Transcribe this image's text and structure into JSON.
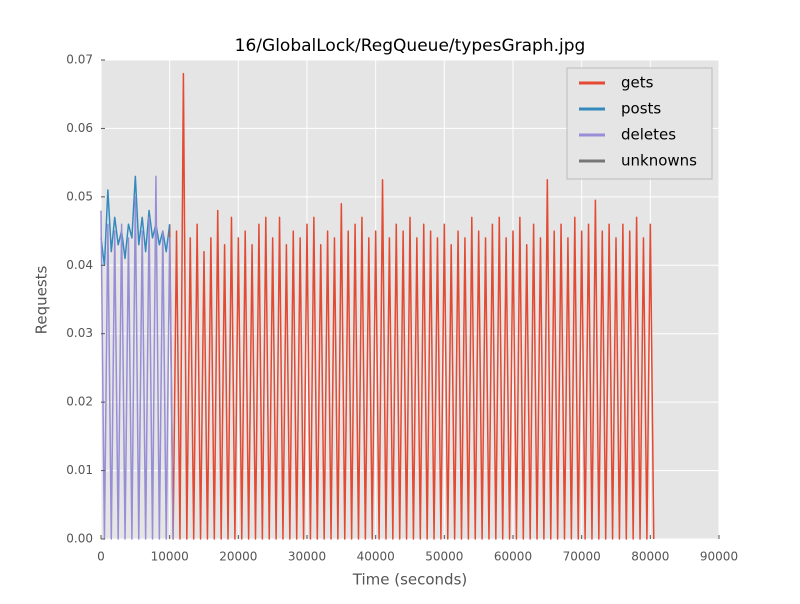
{
  "chart_data": {
    "type": "line",
    "title": "16/GlobalLock/RegQueue/typesGraph.jpg",
    "xlabel": "Time (seconds)",
    "ylabel": "Requests",
    "xlim": [
      0,
      90000
    ],
    "ylim": [
      0,
      0.07
    ],
    "xticks": [
      0,
      10000,
      20000,
      30000,
      40000,
      50000,
      60000,
      70000,
      80000,
      90000
    ],
    "yticks": [
      {
        "value": 0,
        "label": "0.00"
      },
      {
        "value": 0.01,
        "label": "0.01"
      },
      {
        "value": 0.02,
        "label": "0.02"
      },
      {
        "value": 0.03,
        "label": "0.03"
      },
      {
        "value": 0.04,
        "label": "0.04"
      },
      {
        "value": 0.05,
        "label": "0.05"
      },
      {
        "value": 0.06,
        "label": "0.06"
      },
      {
        "value": 0.07,
        "label": "0.07"
      }
    ],
    "grid": true,
    "legend": "upper right",
    "series": [
      {
        "name": "gets",
        "color": "#e24a33",
        "x": [
          10000,
          10500,
          11000,
          11500,
          12000,
          12500,
          13000,
          13500,
          14000,
          14500,
          15000,
          15500,
          16000,
          16500,
          17000,
          17500,
          18000,
          18500,
          19000,
          19500,
          20000,
          20500,
          21000,
          21500,
          22000,
          22500,
          23000,
          23500,
          24000,
          24500,
          25000,
          25500,
          26000,
          26500,
          27000,
          27500,
          28000,
          28500,
          29000,
          29500,
          30000,
          30500,
          31000,
          31500,
          32000,
          32500,
          33000,
          33500,
          34000,
          34500,
          35000,
          35500,
          36000,
          36500,
          37000,
          37500,
          38000,
          38500,
          39000,
          39500,
          40000,
          40500,
          41000,
          41500,
          42000,
          42500,
          43000,
          43500,
          44000,
          44500,
          45000,
          45500,
          46000,
          46500,
          47000,
          47500,
          48000,
          48500,
          49000,
          49500,
          50000,
          50500,
          51000,
          51500,
          52000,
          52500,
          53000,
          53500,
          54000,
          54500,
          55000,
          55500,
          56000,
          56500,
          57000,
          57500,
          58000,
          58500,
          59000,
          59500,
          60000,
          60500,
          61000,
          61500,
          62000,
          62500,
          63000,
          63500,
          64000,
          64500,
          65000,
          65500,
          66000,
          66500,
          67000,
          67500,
          68000,
          68500,
          69000,
          69500,
          70000,
          70500,
          71000,
          71500,
          72000,
          72500,
          73000,
          73500,
          74000,
          74500,
          75000,
          75500,
          76000,
          76500,
          77000,
          77500,
          78000,
          78500,
          79000,
          79500,
          80000,
          80500
        ],
        "values": [
          0.046,
          0,
          0.045,
          0,
          0.068,
          0,
          0.044,
          0,
          0.046,
          0,
          0.042,
          0,
          0.044,
          0,
          0.048,
          0,
          0.043,
          0,
          0.047,
          0,
          0.044,
          0,
          0.045,
          0,
          0.043,
          0,
          0.046,
          0,
          0.047,
          0,
          0.044,
          0,
          0.047,
          0,
          0.043,
          0,
          0.045,
          0,
          0.044,
          0,
          0.046,
          0,
          0.047,
          0,
          0.043,
          0,
          0.045,
          0,
          0.044,
          0,
          0.049,
          0,
          0.045,
          0,
          0.046,
          0,
          0.047,
          0,
          0.044,
          0,
          0.045,
          0,
          0.0525,
          0,
          0.044,
          0,
          0.046,
          0,
          0.045,
          0,
          0.047,
          0,
          0.044,
          0,
          0.046,
          0,
          0.045,
          0,
          0.044,
          0,
          0.046,
          0,
          0.043,
          0,
          0.045,
          0,
          0.044,
          0,
          0.047,
          0,
          0.045,
          0,
          0.044,
          0,
          0.046,
          0,
          0.047,
          0,
          0.044,
          0,
          0.045,
          0,
          0.047,
          0,
          0.043,
          0,
          0.046,
          0,
          0.044,
          0,
          0.0525,
          0,
          0.045,
          0,
          0.046,
          0,
          0.044,
          0,
          0.047,
          0,
          0.045,
          0,
          0.046,
          0,
          0.0495,
          0,
          0.045,
          0,
          0.046,
          0,
          0.044,
          0,
          0.046,
          0,
          0.045,
          0,
          0.047,
          0,
          0.044,
          0,
          0.046,
          0
        ]
      },
      {
        "name": "posts",
        "color": "#348abd",
        "x": [
          0,
          500,
          1000,
          1500,
          2000,
          2500,
          3000,
          3500,
          4000,
          4500,
          5000,
          5500,
          6000,
          6500,
          7000,
          7500,
          8000,
          8500,
          9000,
          9500,
          10000
        ],
        "values": [
          0.044,
          0.04,
          0.051,
          0.042,
          0.047,
          0.043,
          0.045,
          0.041,
          0.046,
          0.044,
          0.053,
          0.043,
          0.047,
          0.042,
          0.048,
          0.044,
          0.046,
          0.043,
          0.045,
          0.042,
          0.046
        ]
      },
      {
        "name": "deletes",
        "color": "#988ed5",
        "x": [
          0,
          500,
          1000,
          1500,
          2000,
          2500,
          3000,
          3500,
          4000,
          4500,
          5000,
          5500,
          6000,
          6500,
          7000,
          7500,
          8000,
          8500,
          9000,
          9500,
          10000,
          10500
        ],
        "values": [
          0.048,
          0,
          0.046,
          0,
          0.045,
          0,
          0.046,
          0,
          0.044,
          0,
          0.05,
          0,
          0.045,
          0,
          0.047,
          0,
          0.053,
          0,
          0.045,
          0,
          0.044,
          0
        ]
      },
      {
        "name": "unknowns",
        "color": "#777777",
        "x": [],
        "values": []
      }
    ]
  }
}
